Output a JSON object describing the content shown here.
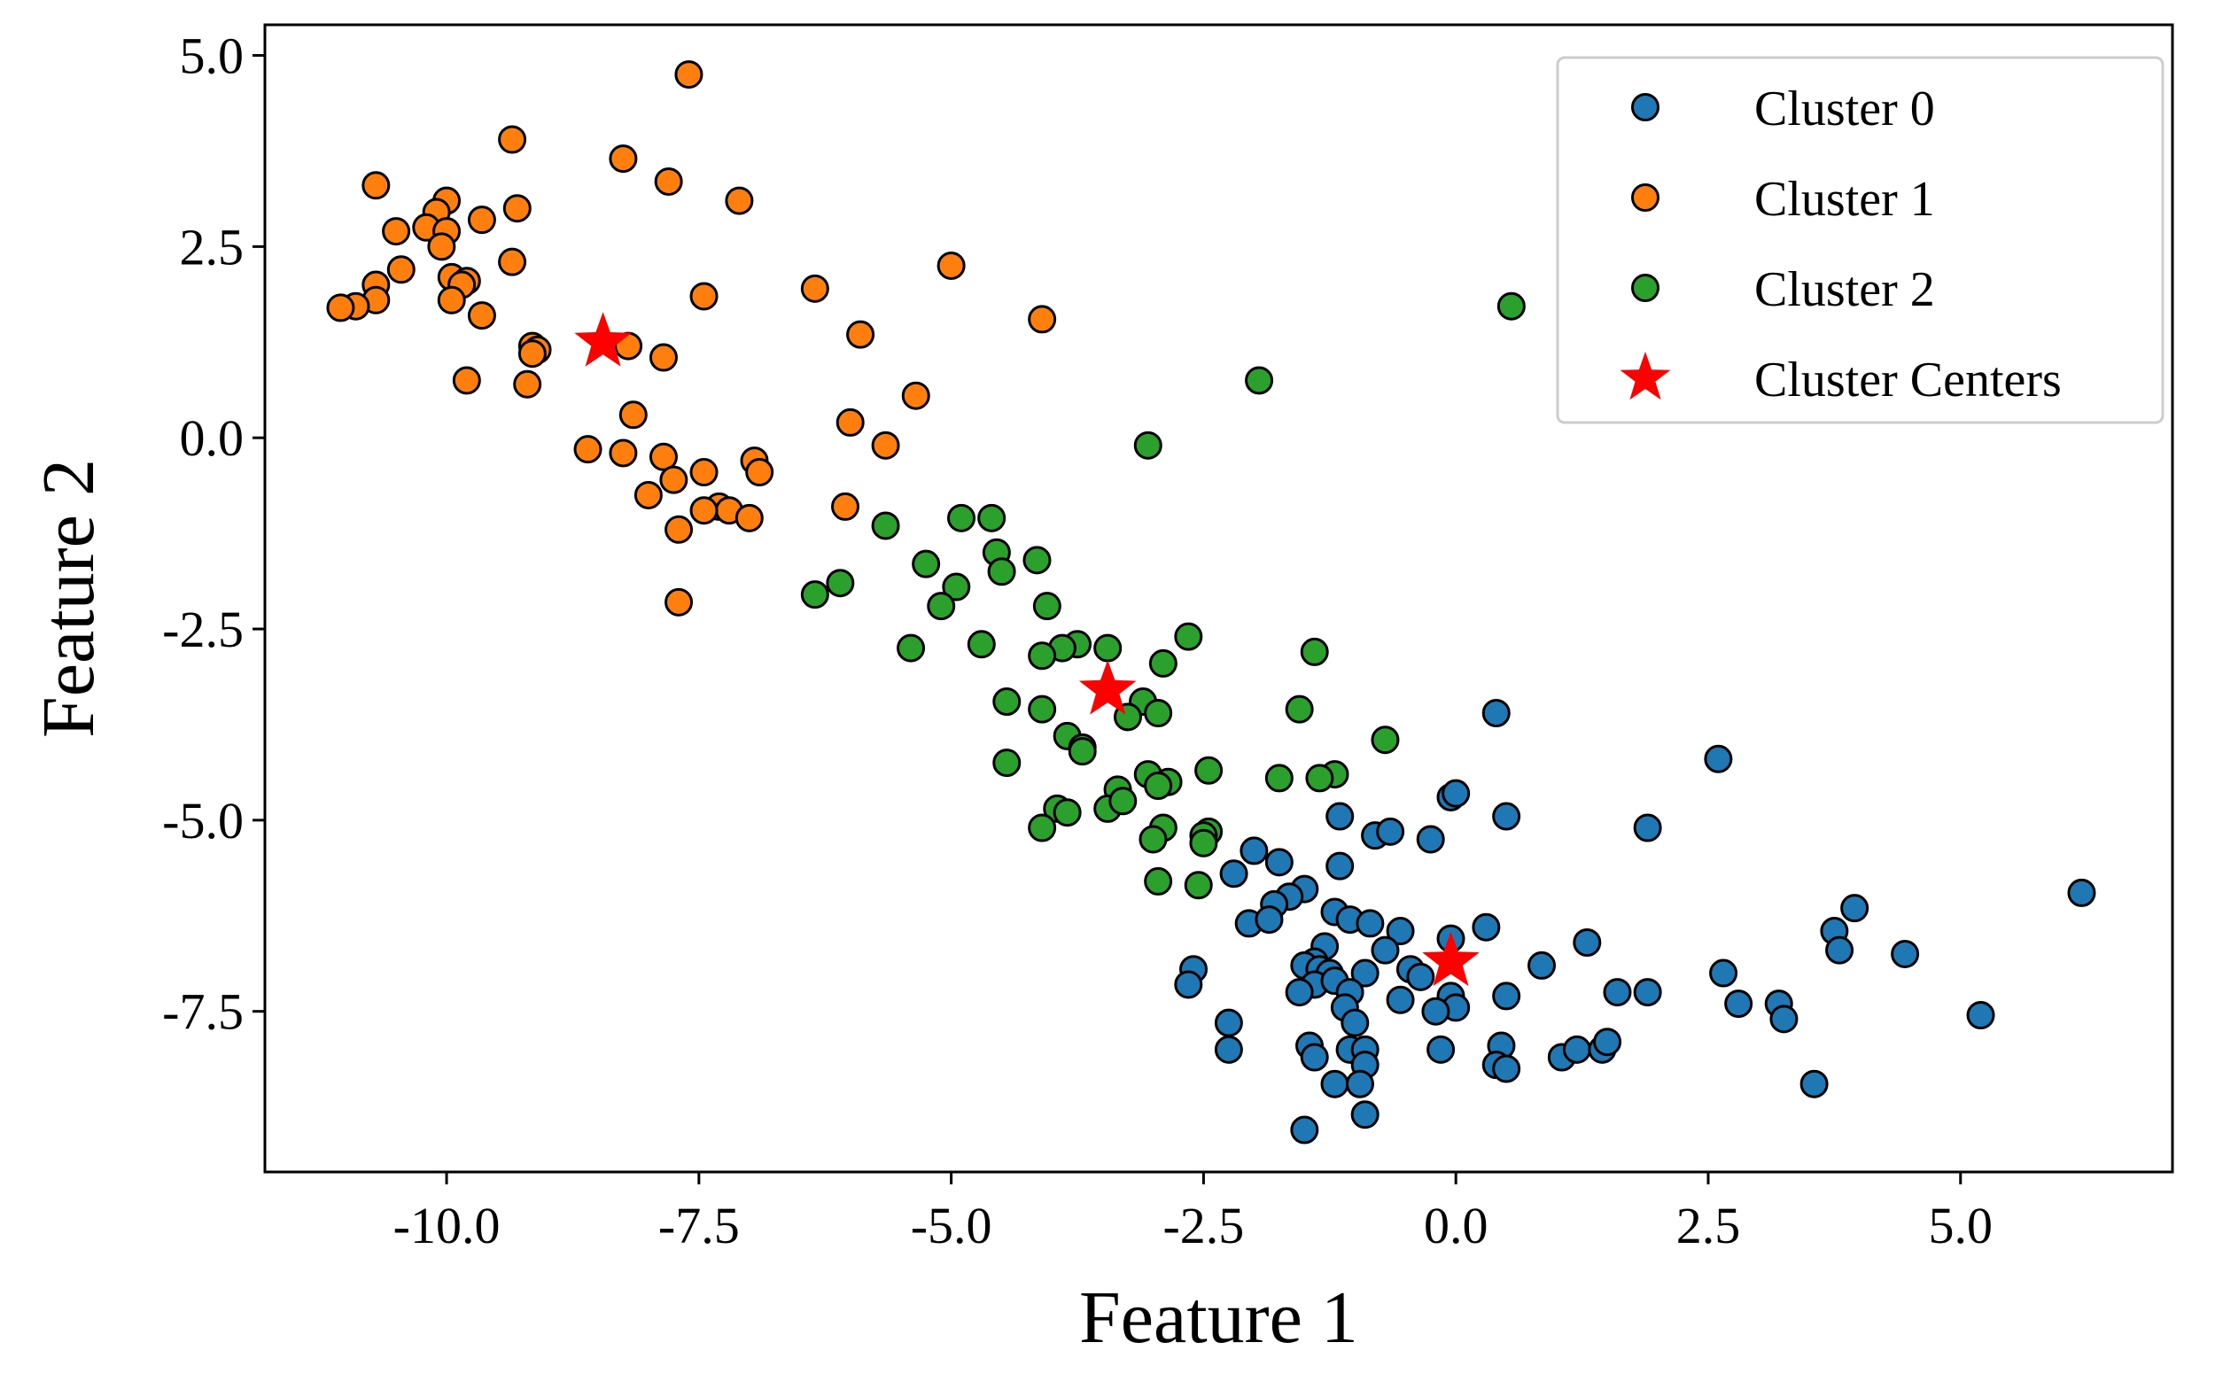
{
  "chart_data": {
    "type": "scatter",
    "xlabel": "Feature 1",
    "ylabel": "Feature 2",
    "xlim": [
      -11.8,
      7.1
    ],
    "ylim": [
      -9.6,
      5.4
    ],
    "x_ticks": [
      -10.0,
      -7.5,
      -5.0,
      -2.5,
      0.0,
      2.5,
      5.0
    ],
    "y_ticks": [
      -7.5,
      -5.0,
      -2.5,
      0.0,
      2.5,
      5.0
    ],
    "x_tick_labels": [
      "-10.0",
      "-7.5",
      "-5.0",
      "-2.5",
      "0.0",
      "2.5",
      "5.0"
    ],
    "y_tick_labels": [
      "-7.5",
      "-5.0",
      "-2.5",
      "0.0",
      "2.5",
      "5.0"
    ],
    "grid": false,
    "legend_position": "top-right",
    "series": [
      {
        "name": "Cluster 0",
        "color": "#1f77b4",
        "points": [
          [
            0.4,
            -3.6
          ],
          [
            2.6,
            -4.2
          ],
          [
            -0.05,
            -4.7
          ],
          [
            0.0,
            -4.65
          ],
          [
            0.5,
            -4.95
          ],
          [
            -1.15,
            -4.95
          ],
          [
            1.9,
            -5.1
          ],
          [
            -0.8,
            -5.2
          ],
          [
            -0.65,
            -5.15
          ],
          [
            -0.25,
            -5.25
          ],
          [
            6.2,
            -5.95
          ],
          [
            -1.15,
            -5.6
          ],
          [
            -2.0,
            -5.4
          ],
          [
            -1.75,
            -5.55
          ],
          [
            -2.2,
            -5.7
          ],
          [
            -1.5,
            -5.9
          ],
          [
            -1.65,
            -6.0
          ],
          [
            -1.8,
            -6.1
          ],
          [
            -1.2,
            -6.2
          ],
          [
            -1.05,
            -6.3
          ],
          [
            -0.85,
            -6.35
          ],
          [
            -2.05,
            -6.35
          ],
          [
            -1.85,
            -6.3
          ],
          [
            -0.55,
            -6.45
          ],
          [
            0.3,
            -6.4
          ],
          [
            3.95,
            -6.15
          ],
          [
            3.75,
            -6.45
          ],
          [
            3.8,
            -6.7
          ],
          [
            4.45,
            -6.75
          ],
          [
            1.3,
            -6.6
          ],
          [
            -0.05,
            -6.55
          ],
          [
            -1.3,
            -6.65
          ],
          [
            -0.7,
            -6.7
          ],
          [
            -1.4,
            -6.85
          ],
          [
            -1.5,
            -6.9
          ],
          [
            -1.35,
            -6.95
          ],
          [
            -0.9,
            -7.0
          ],
          [
            -1.25,
            -7.0
          ],
          [
            -0.45,
            -6.95
          ],
          [
            -0.35,
            -7.05
          ],
          [
            0.85,
            -6.9
          ],
          [
            -2.6,
            -6.95
          ],
          [
            -2.65,
            -7.15
          ],
          [
            -1.4,
            -7.15
          ],
          [
            -1.2,
            -7.1
          ],
          [
            -1.55,
            -7.25
          ],
          [
            -1.05,
            -7.25
          ],
          [
            -0.55,
            -7.35
          ],
          [
            0.5,
            -7.3
          ],
          [
            -0.05,
            -7.3
          ],
          [
            0.0,
            -7.45
          ],
          [
            -0.2,
            -7.5
          ],
          [
            1.6,
            -7.25
          ],
          [
            1.9,
            -7.25
          ],
          [
            2.65,
            -7.0
          ],
          [
            2.8,
            -7.4
          ],
          [
            3.2,
            -7.4
          ],
          [
            3.25,
            -7.6
          ],
          [
            5.2,
            -7.55
          ],
          [
            -1.1,
            -7.45
          ],
          [
            -1.0,
            -7.65
          ],
          [
            -2.25,
            -7.65
          ],
          [
            -2.25,
            -8.0
          ],
          [
            -1.45,
            -7.95
          ],
          [
            -1.4,
            -8.1
          ],
          [
            -1.05,
            -8.0
          ],
          [
            -0.9,
            -8.0
          ],
          [
            -0.9,
            -8.2
          ],
          [
            -0.15,
            -8.0
          ],
          [
            0.45,
            -7.95
          ],
          [
            0.4,
            -8.2
          ],
          [
            0.5,
            -8.25
          ],
          [
            1.05,
            -8.1
          ],
          [
            1.2,
            -8.0
          ],
          [
            1.45,
            -8.0
          ],
          [
            1.5,
            -7.9
          ],
          [
            -1.2,
            -8.45
          ],
          [
            -0.95,
            -8.45
          ],
          [
            3.55,
            -8.45
          ],
          [
            -0.9,
            -8.85
          ],
          [
            -1.5,
            -9.05
          ]
        ]
      },
      {
        "name": "Cluster 1",
        "color": "#ff7f0e",
        "points": [
          [
            -7.6,
            4.75
          ],
          [
            -9.35,
            3.9
          ],
          [
            -8.25,
            3.65
          ],
          [
            -7.8,
            3.35
          ],
          [
            -10.7,
            3.3
          ],
          [
            -7.1,
            3.1
          ],
          [
            -10.0,
            3.1
          ],
          [
            -10.1,
            2.95
          ],
          [
            -9.3,
            3.0
          ],
          [
            -10.2,
            2.75
          ],
          [
            -10.0,
            2.7
          ],
          [
            -10.5,
            2.7
          ],
          [
            -9.65,
            2.85
          ],
          [
            -10.05,
            2.5
          ],
          [
            -9.35,
            2.3
          ],
          [
            -10.45,
            2.2
          ],
          [
            -9.95,
            2.1
          ],
          [
            -9.8,
            2.05
          ],
          [
            -9.85,
            2.0
          ],
          [
            -10.7,
            2.0
          ],
          [
            -5.0,
            2.25
          ],
          [
            -6.35,
            1.95
          ],
          [
            -7.45,
            1.85
          ],
          [
            -9.95,
            1.8
          ],
          [
            -10.7,
            1.8
          ],
          [
            -10.9,
            1.72
          ],
          [
            -11.05,
            1.7
          ],
          [
            -9.65,
            1.6
          ],
          [
            -4.1,
            1.55
          ],
          [
            -5.9,
            1.35
          ],
          [
            -9.15,
            1.2
          ],
          [
            -9.1,
            1.15
          ],
          [
            -9.15,
            1.1
          ],
          [
            -8.2,
            1.2
          ],
          [
            -7.85,
            1.05
          ],
          [
            -9.8,
            0.75
          ],
          [
            -9.2,
            0.7
          ],
          [
            -5.35,
            0.55
          ],
          [
            -8.15,
            0.3
          ],
          [
            -6.0,
            0.2
          ],
          [
            -8.6,
            -0.15
          ],
          [
            -8.25,
            -0.2
          ],
          [
            -7.85,
            -0.25
          ],
          [
            -5.65,
            -0.1
          ],
          [
            -6.95,
            -0.3
          ],
          [
            -6.9,
            -0.45
          ],
          [
            -7.45,
            -0.45
          ],
          [
            -7.75,
            -0.55
          ],
          [
            -8.0,
            -0.75
          ],
          [
            -6.05,
            -0.9
          ],
          [
            -7.3,
            -0.9
          ],
          [
            -7.2,
            -0.95
          ],
          [
            -7.45,
            -0.95
          ],
          [
            -7.0,
            -1.05
          ],
          [
            -7.7,
            -1.2
          ],
          [
            -7.7,
            -2.15
          ]
        ]
      },
      {
        "name": "Cluster 2",
        "color": "#2ca02c",
        "points": [
          [
            0.55,
            1.72
          ],
          [
            -1.95,
            0.75
          ],
          [
            -3.05,
            -0.1
          ],
          [
            -4.9,
            -1.05
          ],
          [
            -4.6,
            -1.05
          ],
          [
            -5.65,
            -1.15
          ],
          [
            -4.55,
            -1.5
          ],
          [
            -4.15,
            -1.6
          ],
          [
            -5.25,
            -1.65
          ],
          [
            -4.5,
            -1.75
          ],
          [
            -4.95,
            -1.95
          ],
          [
            -6.1,
            -1.9
          ],
          [
            -6.35,
            -2.05
          ],
          [
            -5.1,
            -2.2
          ],
          [
            -4.05,
            -2.2
          ],
          [
            -2.65,
            -2.6
          ],
          [
            -4.7,
            -2.7
          ],
          [
            -3.75,
            -2.7
          ],
          [
            -3.9,
            -2.75
          ],
          [
            -3.45,
            -2.75
          ],
          [
            -5.4,
            -2.75
          ],
          [
            -1.4,
            -2.8
          ],
          [
            -4.1,
            -2.85
          ],
          [
            -2.9,
            -2.95
          ],
          [
            -4.45,
            -3.45
          ],
          [
            -3.1,
            -3.45
          ],
          [
            -1.55,
            -3.55
          ],
          [
            -4.1,
            -3.55
          ],
          [
            -2.95,
            -3.6
          ],
          [
            -3.25,
            -3.65
          ],
          [
            -3.85,
            -3.9
          ],
          [
            -3.7,
            -4.05
          ],
          [
            -3.7,
            -4.1
          ],
          [
            -0.7,
            -3.95
          ],
          [
            -4.45,
            -4.25
          ],
          [
            -1.2,
            -4.4
          ],
          [
            -1.35,
            -4.45
          ],
          [
            -2.45,
            -4.35
          ],
          [
            -3.05,
            -4.4
          ],
          [
            -2.85,
            -4.5
          ],
          [
            -1.75,
            -4.45
          ],
          [
            -2.95,
            -4.55
          ],
          [
            -3.35,
            -4.6
          ],
          [
            -3.95,
            -4.85
          ],
          [
            -3.85,
            -4.9
          ],
          [
            -3.45,
            -4.85
          ],
          [
            -3.3,
            -4.75
          ],
          [
            -4.1,
            -5.1
          ],
          [
            -2.9,
            -5.1
          ],
          [
            -2.45,
            -5.15
          ],
          [
            -2.5,
            -5.2
          ],
          [
            -3.0,
            -5.25
          ],
          [
            -2.5,
            -5.3
          ],
          [
            -2.55,
            -5.85
          ],
          [
            -2.95,
            -5.8
          ]
        ]
      },
      {
        "name": "Cluster Centers",
        "color": "#ff0000",
        "marker": "star",
        "points": [
          [
            -8.45,
            1.25
          ],
          [
            -3.45,
            -3.3
          ],
          [
            -0.05,
            -6.85
          ]
        ]
      }
    ]
  }
}
